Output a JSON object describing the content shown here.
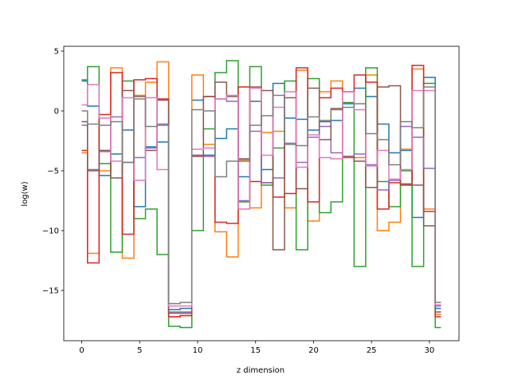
{
  "chart_data": {
    "type": "line",
    "title": "",
    "xlabel": "z dimension",
    "ylabel": "log(w)",
    "xlim": [
      -1.55,
      32.55
    ],
    "ylim": [
      -19.2,
      5.4
    ],
    "xticks": [
      0,
      5,
      10,
      15,
      20,
      25,
      30
    ],
    "yticks": [
      5,
      0,
      -5,
      -10,
      -15
    ],
    "ytick_labels": [
      "5",
      "0",
      "−5",
      "−10",
      "−15"
    ],
    "grid": false,
    "legend": "none",
    "drawstyle": "steps-mid",
    "x": [
      0,
      1,
      2,
      3,
      4,
      5,
      6,
      7,
      8,
      9,
      10,
      11,
      12,
      13,
      14,
      15,
      16,
      17,
      18,
      19,
      20,
      21,
      22,
      23,
      24,
      25,
      26,
      27,
      28,
      29,
      30,
      31
    ],
    "series": [
      {
        "color": "#1f77b4",
        "values": [
          2.5,
          0.4,
          -5.4,
          -3.6,
          -1.6,
          -8.0,
          -3.0,
          -2.6,
          -16.6,
          -16.5,
          0.9,
          -3.7,
          -2.3,
          -1.5,
          -5.5,
          0.8,
          -4.9,
          2.3,
          -0.6,
          -0.7,
          -1.6,
          -0.9,
          -0.8,
          0.6,
          1.9,
          1.2,
          -1.1,
          -3.5,
          -3.3,
          -8.9,
          2.8,
          -16.5
        ]
      },
      {
        "color": "#ff7f0e",
        "values": [
          -3.5,
          -11.9,
          -5.0,
          3.6,
          -12.3,
          1.3,
          2.4,
          4.1,
          -17.2,
          -17.1,
          3.0,
          -2.8,
          -10.1,
          -12.2,
          -4.1,
          -8.1,
          -1.8,
          -1.7,
          -8.1,
          3.4,
          -9.2,
          1.6,
          2.5,
          -3.9,
          -3.9,
          3.0,
          -10.0,
          -9.3,
          -3.2,
          3.5,
          -8.2,
          -17.0
        ]
      },
      {
        "color": "#2ca02c",
        "values": [
          2.6,
          3.7,
          -4.4,
          -11.8,
          2.5,
          -9.0,
          -8.2,
          -12.0,
          -18.0,
          -18.1,
          -10.0,
          -1.5,
          3.2,
          4.2,
          -7.6,
          3.7,
          -6.2,
          -3.1,
          2.5,
          -11.6,
          2.7,
          -8.5,
          -7.6,
          0.7,
          -13.0,
          3.6,
          -5.9,
          -8.0,
          -5.0,
          -13.0,
          2.3,
          -18.1
        ]
      },
      {
        "color": "#d62728",
        "values": [
          -3.3,
          -12.7,
          -0.3,
          3.2,
          -10.3,
          2.6,
          2.7,
          1.0,
          -17.2,
          -17.1,
          -3.7,
          1.2,
          -9.3,
          -9.4,
          2.0,
          -5.9,
          -6.0,
          -7.2,
          -6.9,
          3.6,
          -7.6,
          1.1,
          1.9,
          1.6,
          3.0,
          2.4,
          -8.2,
          -6.0,
          -6.2,
          3.8,
          -8.4,
          -17.2
        ]
      },
      {
        "color": "#9467bd",
        "values": [
          -1.2,
          -4.9,
          -3.4,
          -0.5,
          -4.3,
          -3.9,
          -3.1,
          -1.1,
          -16.8,
          -16.8,
          -3.7,
          -3.8,
          1.0,
          0.8,
          -7.5,
          -1.7,
          -6.0,
          -5.6,
          -2.7,
          -4.3,
          -2.2,
          -1.3,
          -3.5,
          -3.9,
          -3.6,
          -4.5,
          -6.6,
          -5.8,
          -1.3,
          -2.2,
          -4.8,
          -16.3
        ]
      },
      {
        "color": "#8c564b",
        "values": [
          -0.9,
          -5.0,
          -3.3,
          -5.6,
          1.7,
          1.2,
          -3.3,
          0.9,
          -16.9,
          -16.9,
          -3.8,
          1.2,
          2.4,
          1.2,
          -4.0,
          2.0,
          1.7,
          -11.6,
          1.1,
          -6.5,
          1.9,
          -2.4,
          0.2,
          -3.8,
          -4.2,
          -6.4,
          2.0,
          2.1,
          -6.1,
          -6.2,
          -9.6,
          -16.8
        ]
      },
      {
        "color": "#e377c2",
        "values": [
          0.5,
          2.2,
          -0.6,
          -4.2,
          1.1,
          -5.8,
          1.1,
          -4.9,
          -16.3,
          -16.3,
          -3.2,
          -3.1,
          1.0,
          1.3,
          -8.2,
          1.9,
          -3.7,
          0.3,
          1.6,
          -4.7,
          -2.0,
          -3.9,
          -4.0,
          1.6,
          0.1,
          -4.6,
          -3.3,
          -5.7,
          -4.9,
          1.7,
          1.7,
          -16.2
        ]
      },
      {
        "color": "#7f7f7f",
        "values": [
          0.0,
          -1.1,
          -1.2,
          -0.9,
          -4.3,
          1.0,
          -1.3,
          -1.2,
          -16.1,
          -16.0,
          0.1,
          0.0,
          -5.5,
          -4.2,
          -4.2,
          -1.2,
          -0.4,
          1.3,
          -2.8,
          -2.9,
          -0.5,
          -0.8,
          0.1,
          0.3,
          0.6,
          -1.9,
          -2.4,
          -4.5,
          -0.9,
          -1.4,
          2.0,
          -16.0
        ]
      }
    ]
  }
}
